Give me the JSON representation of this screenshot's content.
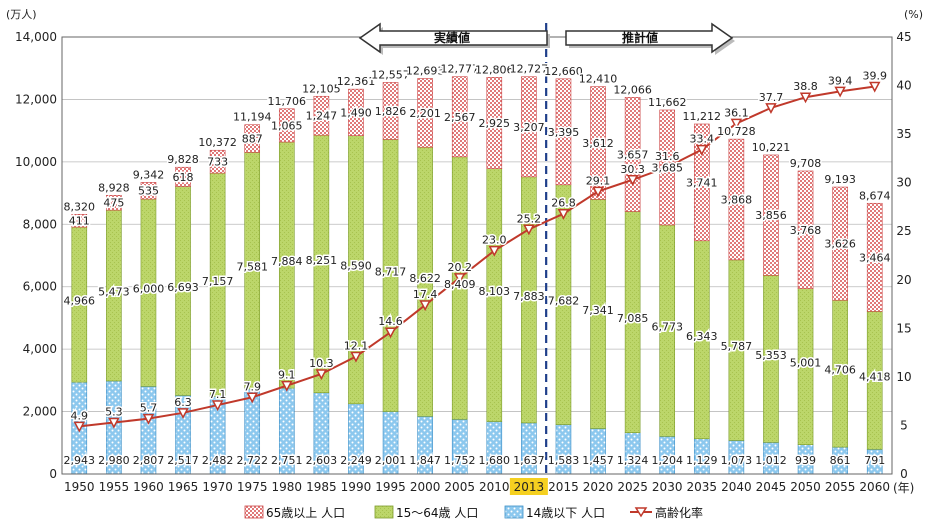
{
  "chart_data": {
    "type": "bar",
    "stacked": true,
    "y_left_unit": "(万人)",
    "y_right_unit": "(%)",
    "x_unit": "(年)",
    "ylim": [
      0,
      14000
    ],
    "y_ticks": [
      "0",
      "2,000",
      "4,000",
      "6,000",
      "8,000",
      "10,000",
      "12,000",
      "14,000"
    ],
    "y_right_lim": [
      0,
      45
    ],
    "y_right_ticks": [
      "0",
      "5",
      "10",
      "15",
      "20",
      "25",
      "30",
      "35",
      "40",
      "45"
    ],
    "categories": [
      "1950",
      "1955",
      "1960",
      "1965",
      "1970",
      "1975",
      "1980",
      "1985",
      "1990",
      "1995",
      "2000",
      "2005",
      "2010",
      "2013",
      "2015",
      "2020",
      "2025",
      "2030",
      "2035",
      "2040",
      "2045",
      "2050",
      "2055",
      "2060"
    ],
    "highlight_category": "2013",
    "highlight_color": "#f5d020",
    "divider_after": "2013",
    "period_labels": {
      "actual": "実績値",
      "estimate": "推計値"
    },
    "series": [
      {
        "name": "65歳以上 人口",
        "values": [
          411,
          475,
          535,
          618,
          733,
          887,
          1065,
          1247,
          1490,
          1826,
          2201,
          2567,
          2925,
          3207,
          3395,
          3612,
          3657,
          3685,
          3741,
          3868,
          3856,
          3768,
          3626,
          3464
        ],
        "labels": [
          "411",
          "475",
          "535",
          "618",
          "733",
          "887",
          "1,065",
          "1,247",
          "1,490",
          "1,826",
          "2,201",
          "2,567",
          "2,925",
          "3,207",
          "3,395",
          "3,612",
          "3,657",
          "3,685",
          "3,741",
          "3,868",
          "3,856",
          "3,768",
          "3,626",
          "3,464"
        ],
        "color": "#e07a7a"
      },
      {
        "name": "15～64歳 人口",
        "values": [
          4966,
          5473,
          6000,
          6693,
          7157,
          7581,
          7884,
          8251,
          8590,
          8717,
          8622,
          8409,
          8103,
          7883,
          7682,
          7341,
          7085,
          6773,
          6343,
          5787,
          5353,
          5001,
          4706,
          4418
        ],
        "labels": [
          "4,966",
          "5,473",
          "6,000",
          "6,693",
          "7,157",
          "7,581",
          "7,884",
          "8,251",
          "8,590",
          "8,717",
          "8,622",
          "8,409",
          "8,103",
          "7,883",
          "7,682",
          "7,341",
          "7,085",
          "6,773",
          "6,343",
          "5,787",
          "5,353",
          "5,001",
          "4,706",
          "4,418"
        ],
        "color": "#bcd66a"
      },
      {
        "name": "14歳以下 人口",
        "values": [
          2943,
          2980,
          2807,
          2517,
          2482,
          2722,
          2751,
          2603,
          2249,
          2001,
          1847,
          1752,
          1680,
          1637,
          1583,
          1457,
          1324,
          1204,
          1129,
          1073,
          1012,
          939,
          861,
          791
        ],
        "labels": [
          "2,943",
          "2,980",
          "2,807",
          "2,517",
          "2,482",
          "2,722",
          "2,751",
          "2,603",
          "2,249",
          "2,001",
          "1,847",
          "1,752",
          "1,680",
          "1,637",
          "1,583",
          "1,457",
          "1,324",
          "1,204",
          "1,129",
          "1,073",
          "1,012",
          "939",
          "861",
          "791"
        ],
        "color": "#8cc8ee"
      },
      {
        "name": "高齢化率",
        "axis": "right",
        "values": [
          4.9,
          5.3,
          5.7,
          6.3,
          7.1,
          7.9,
          9.1,
          10.3,
          12.1,
          14.6,
          17.4,
          20.2,
          23.0,
          25.2,
          26.8,
          29.1,
          30.3,
          31.6,
          33.4,
          36.1,
          37.7,
          38.8,
          39.4,
          39.9
        ],
        "labels": [
          "4.9",
          "5.3",
          "5.7",
          "6.3",
          "7.1",
          "7.9",
          "9.1",
          "10.3",
          "12.1",
          "14.6",
          "17.4",
          "20.2",
          "23.0",
          "25.2",
          "26.8",
          "29.1",
          "30.3",
          "31.6",
          "33.4",
          "36.1",
          "37.7",
          "38.8",
          "39.4",
          "39.9"
        ],
        "color": "#c0392b"
      }
    ],
    "totals": [
      "8,320",
      "8,928",
      "9,342",
      "9,828",
      "10,372",
      "11,194",
      "11,706",
      "12,105",
      "12,361",
      "12,557",
      "12,693",
      "12,777",
      "12,806",
      "12,727",
      "12,660",
      "12,410",
      "12,066",
      "11,662",
      "11,212",
      "10,728",
      "10,221",
      "9,708",
      "9,193",
      "8,674"
    ],
    "grid": true,
    "legend_position": "bottom"
  }
}
